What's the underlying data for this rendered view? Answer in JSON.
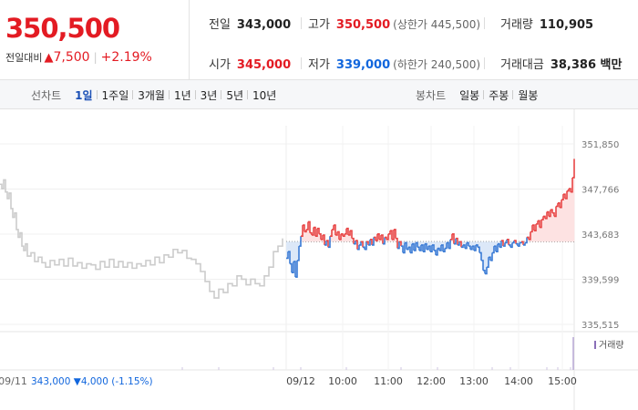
{
  "summary": {
    "price": "350,500",
    "change_label": "전일대비",
    "change_arrow": "▲",
    "change_value": "7,500",
    "change_percent": "+2.19%",
    "prev_close": {
      "label": "전일",
      "value": "343,000"
    },
    "open": {
      "label": "시가",
      "value": "345,000"
    },
    "high": {
      "label": "고가",
      "value": "350,500",
      "limit": "(상한가 445,500)"
    },
    "low": {
      "label": "저가",
      "value": "339,000",
      "limit": "(하한가 240,500)"
    },
    "volume": {
      "label": "거래량",
      "value": "110,905"
    },
    "amount": {
      "label": "거래대금",
      "value": "38,386 백만"
    }
  },
  "toolbar": {
    "line_chart_label": "선차트",
    "periods": [
      "1일",
      "1주일",
      "3개월",
      "1년",
      "3년",
      "5년",
      "10년"
    ],
    "active_period": "1일",
    "candle_chart_label": "봉차트",
    "candle_periods": [
      "일봉",
      "주봉",
      "월봉"
    ]
  },
  "chart_data": {
    "type": "line",
    "y_ticks": [
      "351,850",
      "347,766",
      "343,683",
      "339,599",
      "335,515"
    ],
    "y_tick_values": [
      351850,
      347766,
      343683,
      339599,
      335515
    ],
    "ylim": [
      335515,
      351850
    ],
    "baseline": 343000,
    "x_ticks": [
      "09/12",
      "10:00",
      "11:00",
      "12:00",
      "13:00",
      "14:00",
      "15:00"
    ],
    "prev_day_label": "09/11",
    "prev_day_summary": "343,000 ▼4,000 (-1.15%)",
    "volume_legend": "거래량",
    "colors": {
      "up": "#e84545",
      "down": "#3a7bd5",
      "prev": "#cccccc",
      "up_fill": "#fde2e2",
      "down_fill": "#dce8f8"
    },
    "series": [
      {
        "x": [
          0,
          2,
          4,
          6,
          8,
          10,
          12,
          14,
          16,
          18,
          20,
          22,
          24,
          26,
          28,
          30,
          34,
          38,
          42,
          46,
          50,
          55,
          60,
          65,
          70,
          75,
          80,
          85,
          90,
          95,
          100,
          105,
          110,
          115,
          120,
          125,
          130,
          135,
          140,
          145,
          150,
          155,
          160,
          165,
          170,
          175,
          180,
          185,
          190,
          195,
          200,
          205,
          210,
          215,
          220,
          225,
          230,
          235,
          240,
          245,
          250,
          255,
          260,
          265,
          270,
          275,
          280,
          285,
          290,
          295,
          300,
          305,
          310
        ],
        "values": [
          348200,
          347800,
          348600,
          347500,
          346900,
          347400,
          346000,
          345200,
          345600,
          344100,
          343400,
          343800,
          342600,
          342200,
          342800,
          341700,
          342000,
          341200,
          341600,
          341100,
          340700,
          341300,
          340900,
          341400,
          340800,
          341500,
          340800,
          341100,
          340600,
          341000,
          340900,
          340500,
          341200,
          340700,
          341400,
          340700,
          341200,
          340700,
          341100,
          340600,
          341000,
          340800,
          341300,
          340900,
          341600,
          341100,
          341800,
          341600,
          342300,
          342000,
          342200,
          341500,
          341400,
          341000,
          340300,
          339400,
          338500,
          337900,
          338700,
          338400,
          339200,
          339000,
          339900,
          339600,
          339100,
          339600,
          339200,
          339000,
          339900,
          340700,
          342100,
          342600,
          343300
        ]
      },
      {
        "x": [
          314,
          316,
          318,
          320,
          322,
          324,
          326,
          328,
          330,
          332,
          334,
          336,
          338,
          340,
          342,
          344,
          346,
          348,
          350,
          352,
          354,
          356,
          358,
          360,
          362,
          364,
          366,
          368,
          370,
          372,
          374,
          376,
          378,
          380,
          382,
          384,
          386,
          388,
          390,
          392,
          394,
          396,
          398,
          400,
          402,
          404,
          406,
          408,
          410,
          412,
          414,
          416,
          418,
          420,
          422,
          424,
          426,
          428,
          430,
          432,
          434,
          436,
          438,
          440,
          442,
          444,
          446,
          448,
          450,
          452,
          454,
          456,
          458,
          460,
          462,
          464,
          466,
          468,
          470,
          472,
          474,
          476,
          478,
          480,
          482,
          484,
          486,
          488,
          490,
          492,
          494,
          496,
          498,
          500,
          502,
          504,
          506,
          508,
          510,
          512,
          514,
          516,
          518,
          520,
          522,
          524,
          526,
          528,
          530,
          532,
          534,
          536,
          538,
          540,
          542,
          544,
          546,
          548,
          550,
          552,
          554,
          556,
          558,
          560,
          562,
          564,
          566,
          568,
          570,
          572,
          574,
          576,
          578,
          580,
          582,
          584,
          586,
          588,
          590,
          592,
          594,
          596,
          598,
          600,
          602,
          604,
          606,
          608,
          610,
          612,
          614,
          616,
          618,
          620,
          622,
          624,
          626,
          628,
          630
        ],
        "values": [
          341500,
          342100,
          341000,
          340200,
          341200,
          339800,
          341300,
          342600,
          343500,
          344500,
          343900,
          344100,
          344800,
          343800,
          343600,
          344300,
          343500,
          344200,
          343700,
          343200,
          343600,
          342700,
          343100,
          342500,
          343500,
          344100,
          344500,
          343600,
          343900,
          343200,
          343700,
          343500,
          343700,
          344200,
          343600,
          344000,
          343300,
          342800,
          343100,
          342300,
          342700,
          343000,
          342500,
          342300,
          343000,
          342700,
          343200,
          342700,
          343400,
          343100,
          343700,
          343200,
          343600,
          342800,
          343400,
          343200,
          343700,
          344000,
          343200,
          344100,
          343300,
          342400,
          343000,
          342600,
          342000,
          342900,
          342300,
          342500,
          342000,
          342800,
          342200,
          342900,
          342500,
          342200,
          342700,
          342100,
          342800,
          342300,
          342600,
          342100,
          342700,
          342200,
          341800,
          342400,
          342200,
          342700,
          342100,
          342400,
          342900,
          342400,
          343200,
          343700,
          342800,
          343300,
          342700,
          343000,
          342500,
          342700,
          342400,
          342900,
          342600,
          342300,
          342600,
          342200,
          342700,
          342500,
          342000,
          341300,
          340400,
          340100,
          340700,
          341600,
          341300,
          342000,
          342600,
          342100,
          342800,
          342500,
          343100,
          342600,
          342900,
          343200,
          342700,
          342500,
          342900,
          343100,
          342800,
          342600,
          342900,
          343000,
          342700,
          342900,
          343400,
          343200,
          343900,
          344500,
          344000,
          344600,
          344900,
          344300,
          345000,
          345300,
          345100,
          345700,
          345300,
          345900,
          345600,
          345300,
          346200,
          346500,
          346100,
          346800,
          347300,
          346900,
          347600,
          347800,
          347500,
          348800,
          350500
        ]
      }
    ]
  }
}
